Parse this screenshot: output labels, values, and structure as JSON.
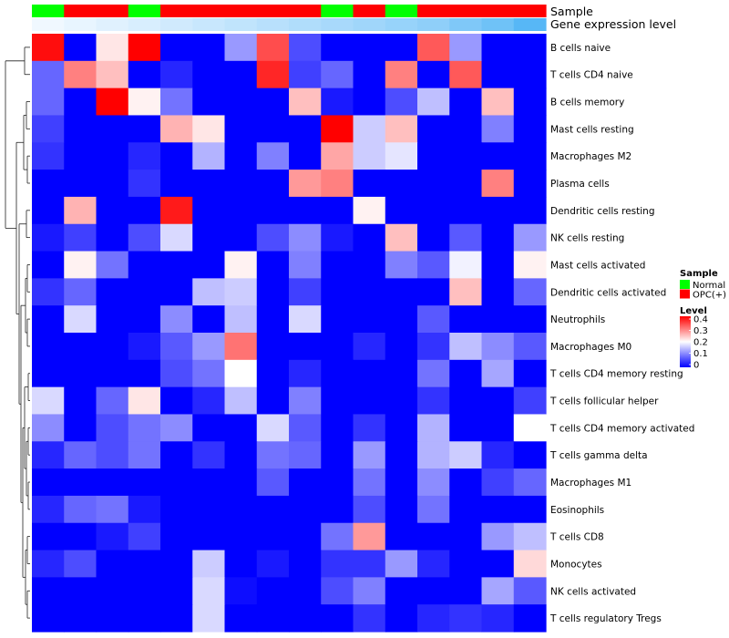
{
  "chart_data": {
    "type": "heatmap",
    "annotation_rows": {
      "sample_label": "Sample",
      "gene_label": "Gene expression level"
    },
    "sample_per_column": [
      "Normal",
      "OPC(+)",
      "OPC(+)",
      "Normal",
      "OPC(+)",
      "OPC(+)",
      "OPC(+)",
      "OPC(+)",
      "OPC(+)",
      "Normal",
      "OPC(+)",
      "Normal",
      "OPC(+)",
      "OPC(+)",
      "OPC(+)",
      "OPC(+)"
    ],
    "gene_expression_per_column": [
      0.0,
      0.05,
      0.1,
      0.15,
      0.2,
      0.25,
      0.3,
      0.35,
      0.4,
      0.45,
      0.5,
      0.55,
      0.6,
      0.7,
      0.8,
      0.95
    ],
    "row_labels": [
      "B cells naive",
      "T cells CD4 naive",
      "B cells memory",
      "Mast cells resting",
      "Macrophages M2",
      "Plasma cells",
      "Dendritic cells resting",
      "NK cells resting",
      "Mast cells activated",
      "Dendritic cells activated",
      "Neutrophils",
      "Macrophages M0",
      "T cells CD4 memory resting",
      "T cells follicular helper",
      "T cells CD4 memory activated",
      "T cells gamma delta",
      "Macrophages M1",
      "Eosinophils",
      "T cells CD8",
      "Monocytes",
      "NK cells activated",
      "T cells regulatory  Tregs"
    ],
    "values": [
      [
        0.39,
        0.0,
        0.22,
        0.4,
        0.0,
        0.0,
        0.12,
        0.34,
        0.06,
        0.0,
        0.0,
        0.0,
        0.33,
        0.12,
        0.0,
        0.0
      ],
      [
        0.08,
        0.3,
        0.25,
        0.0,
        0.03,
        0.0,
        0.0,
        0.37,
        0.05,
        0.08,
        0.0,
        0.3,
        0.0,
        0.33,
        0.0,
        0.0
      ],
      [
        0.08,
        0.0,
        0.4,
        0.21,
        0.09,
        0.0,
        0.0,
        0.0,
        0.25,
        0.02,
        0.0,
        0.06,
        0.15,
        0.0,
        0.25,
        0.0
      ],
      [
        0.05,
        0.0,
        0.0,
        0.0,
        0.26,
        0.22,
        0.0,
        0.0,
        0.0,
        0.4,
        0.16,
        0.25,
        0.0,
        0.0,
        0.1,
        0.0
      ],
      [
        0.04,
        0.0,
        0.0,
        0.03,
        0.0,
        0.14,
        0.0,
        0.1,
        0.0,
        0.27,
        0.16,
        0.18,
        0.0,
        0.0,
        0.0,
        0.0
      ],
      [
        0.0,
        0.0,
        0.0,
        0.04,
        0.0,
        0.0,
        0.0,
        0.0,
        0.28,
        0.3,
        0.0,
        0.0,
        0.0,
        0.0,
        0.3,
        0.0
      ],
      [
        0.0,
        0.26,
        0.0,
        0.0,
        0.38,
        0.0,
        0.0,
        0.0,
        0.0,
        0.0,
        0.21,
        0.0,
        0.0,
        0.0,
        0.0,
        0.0
      ],
      [
        0.02,
        0.05,
        0.0,
        0.06,
        0.17,
        0.0,
        0.0,
        0.06,
        0.11,
        0.02,
        0.0,
        0.25,
        0.0,
        0.07,
        0.0,
        0.12
      ],
      [
        0.0,
        0.21,
        0.09,
        0.0,
        0.0,
        0.0,
        0.21,
        0.0,
        0.1,
        0.0,
        0.0,
        0.1,
        0.07,
        0.19,
        0.0,
        0.21
      ],
      [
        0.04,
        0.08,
        0.0,
        0.0,
        0.0,
        0.15,
        0.16,
        0.0,
        0.05,
        0.0,
        0.0,
        0.0,
        0.0,
        0.25,
        0.0,
        0.08
      ],
      [
        0.0,
        0.17,
        0.0,
        0.0,
        0.11,
        0.0,
        0.15,
        0.0,
        0.17,
        0.0,
        0.0,
        0.0,
        0.07,
        0.0,
        0.0,
        0.0
      ],
      [
        0.0,
        0.0,
        0.0,
        0.02,
        0.07,
        0.12,
        0.31,
        0.0,
        0.0,
        0.0,
        0.03,
        0.0,
        0.04,
        0.15,
        0.11,
        0.07
      ],
      [
        0.0,
        0.0,
        0.0,
        0.0,
        0.06,
        0.09,
        0.2,
        0.0,
        0.03,
        0.0,
        0.0,
        0.0,
        0.09,
        0.0,
        0.13,
        0.0
      ],
      [
        0.17,
        0.0,
        0.08,
        0.22,
        0.0,
        0.03,
        0.15,
        0.0,
        0.1,
        0.0,
        0.0,
        0.0,
        0.04,
        0.0,
        0.0,
        0.05
      ],
      [
        0.11,
        0.0,
        0.06,
        0.09,
        0.11,
        0.0,
        0.0,
        0.17,
        0.07,
        0.0,
        0.04,
        0.0,
        0.14,
        0.0,
        0.0,
        0.2
      ],
      [
        0.03,
        0.08,
        0.06,
        0.09,
        0.0,
        0.04,
        0.0,
        0.09,
        0.08,
        0.0,
        0.12,
        0.0,
        0.14,
        0.16,
        0.03,
        0.0
      ],
      [
        0.0,
        0.0,
        0.0,
        0.0,
        0.0,
        0.0,
        0.0,
        0.07,
        0.0,
        0.0,
        0.09,
        0.0,
        0.11,
        0.0,
        0.05,
        0.08
      ],
      [
        0.03,
        0.08,
        0.09,
        0.02,
        0.0,
        0.0,
        0.0,
        0.0,
        0.0,
        0.0,
        0.06,
        0.0,
        0.09,
        0.0,
        0.0,
        0.0
      ],
      [
        0.0,
        0.0,
        0.02,
        0.05,
        0.0,
        0.0,
        0.0,
        0.0,
        0.0,
        0.09,
        0.28,
        0.0,
        0.0,
        0.0,
        0.12,
        0.15
      ],
      [
        0.03,
        0.06,
        0.0,
        0.0,
        0.0,
        0.16,
        0.0,
        0.02,
        0.0,
        0.04,
        0.04,
        0.12,
        0.03,
        0.0,
        0.0,
        0.23
      ],
      [
        0.0,
        0.0,
        0.0,
        0.0,
        0.0,
        0.17,
        0.01,
        0.0,
        0.0,
        0.06,
        0.1,
        0.0,
        0.0,
        0.0,
        0.13,
        0.07
      ],
      [
        0.0,
        0.0,
        0.0,
        0.0,
        0.0,
        0.17,
        0.0,
        0.0,
        0.0,
        0.0,
        0.04,
        0.0,
        0.03,
        0.04,
        0.03,
        0.0
      ]
    ],
    "color_scale": {
      "min": 0,
      "max": 0.4,
      "low": "#0000ff",
      "mid": "#ffffff",
      "high": "#ff0000"
    },
    "legend": {
      "sample_title": "Sample",
      "sample_entries": [
        {
          "label": "Normal",
          "color": "#00ff00"
        },
        {
          "label": "OPC(+)",
          "color": "#ff0000"
        }
      ],
      "level_title": "Level",
      "level_ticks": [
        "0.4",
        "0.3",
        "0.2",
        "0.1",
        "0"
      ]
    },
    "dendrogram": "rows clustered (hierarchical)"
  }
}
